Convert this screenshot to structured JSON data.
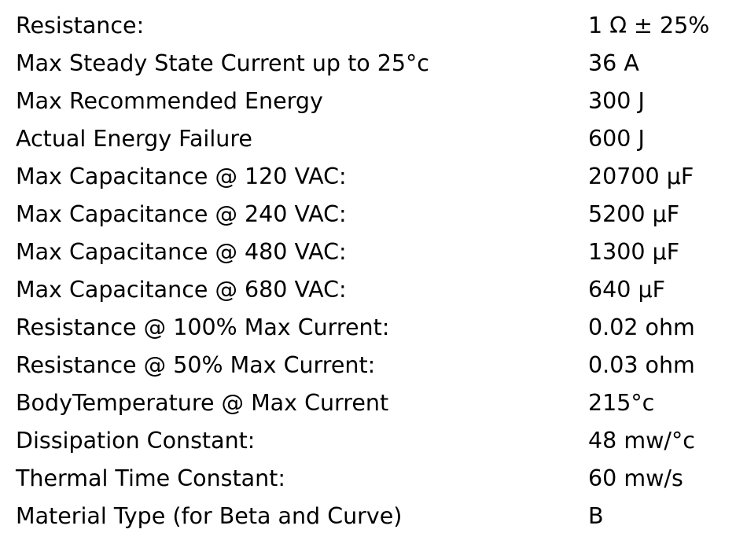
{
  "table": {
    "rows": [
      [
        "Resistance:",
        "1 Ω ± 25%"
      ],
      [
        "Max Steady State Current up to 25°c",
        "36 A"
      ],
      [
        "Max Recommended Energy",
        "300 J"
      ],
      [
        "Actual Energy Failure",
        "600 J"
      ],
      [
        "Max Capacitance @ 120 VAC:",
        "20700 µF"
      ],
      [
        "Max Capacitance @ 240 VAC:",
        "5200 µF"
      ],
      [
        "Max Capacitance @ 480 VAC:",
        "1300 µF"
      ],
      [
        "Max Capacitance @ 680 VAC:",
        "640 µF"
      ],
      [
        "Resistance @ 100% Max Current:",
        "0.02 ohm"
      ],
      [
        "Resistance @ 50% Max Current:",
        "0.03 ohm"
      ],
      [
        "BodyTemperature @ Max Current",
        "215°c"
      ],
      [
        "Dissipation Constant:",
        "48 mw/°c"
      ],
      [
        "Thermal Time Constant:",
        "60 mw/s"
      ],
      [
        "Material Type (for Beta and Curve)",
        "B"
      ]
    ]
  }
}
